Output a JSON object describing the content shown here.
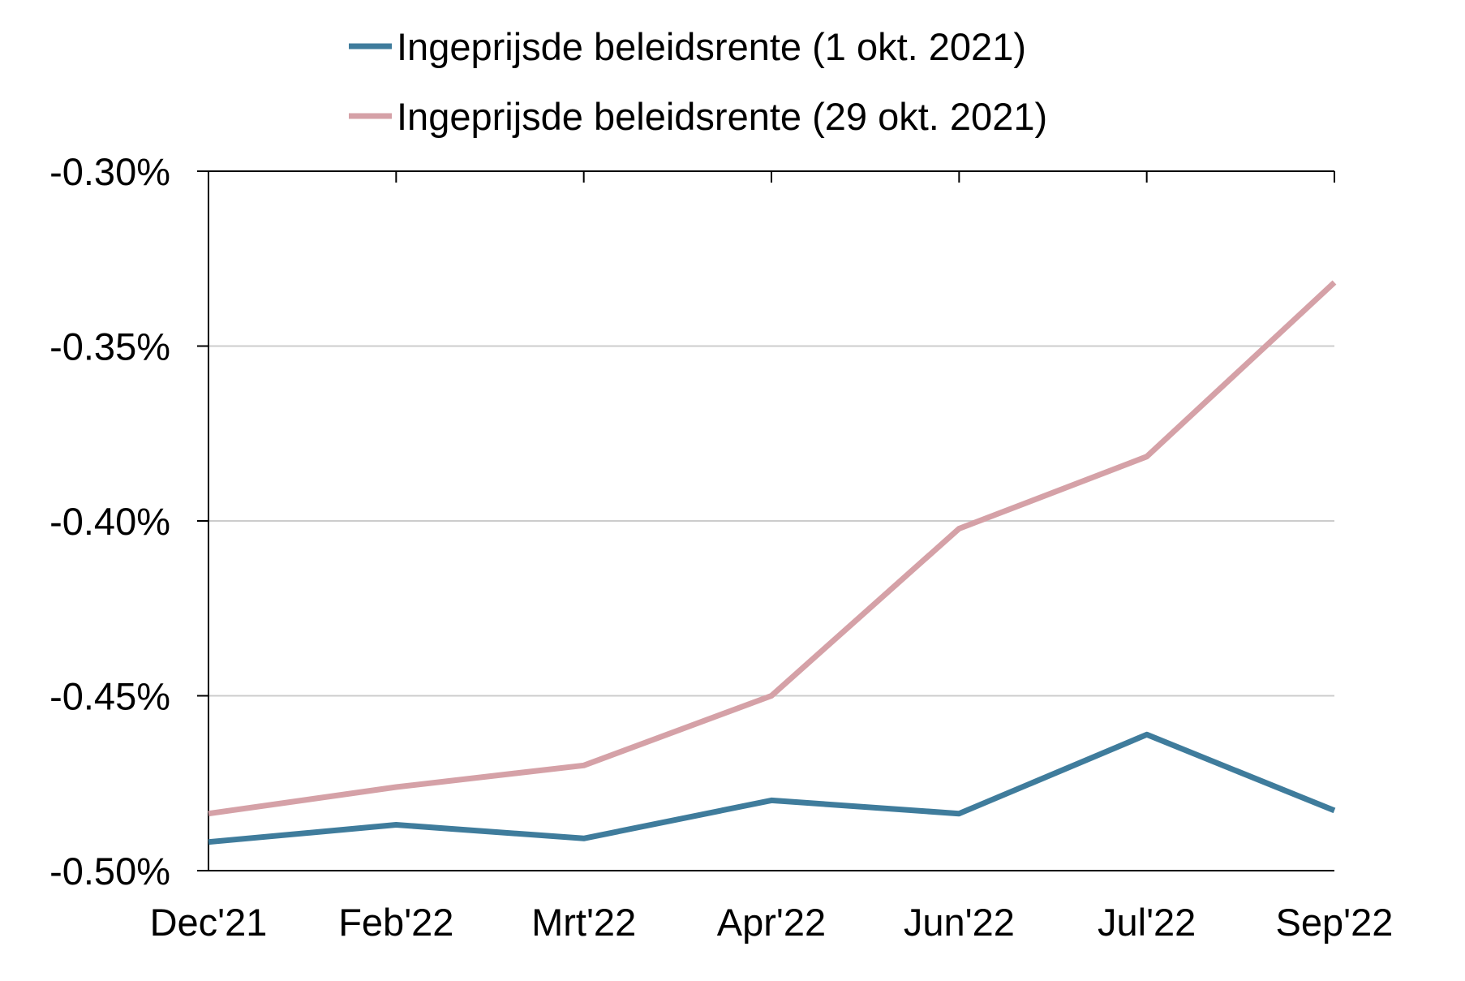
{
  "chart_data": {
    "type": "line",
    "categories": [
      "Dec'21",
      "Feb'22",
      "Mrt'22",
      "Apr'22",
      "Jun'22",
      "Jul'22",
      "Sep'22"
    ],
    "series": [
      {
        "name": "Ingeprijsde beleidsrente (1 okt. 2021)",
        "color": "#3f7c9c",
        "values": [
          -0.4918,
          -0.4869,
          -0.4908,
          -0.4799,
          -0.4837,
          -0.4611,
          -0.4828
        ]
      },
      {
        "name": "Ingeprijsde beleidsrente (29 okt. 2021)",
        "color": "#d5a1a7",
        "values": [
          -0.4837,
          -0.4761,
          -0.4699,
          -0.45,
          -0.4022,
          -0.3816,
          -0.3318
        ]
      }
    ],
    "ylim": [
      -0.5,
      -0.3
    ],
    "yticks": [
      -0.5,
      -0.45,
      -0.4,
      -0.35,
      -0.3
    ],
    "ytick_labels": [
      "-0.50%",
      "-0.45%",
      "-0.40%",
      "-0.35%",
      "-0.30%"
    ],
    "grid": true,
    "legend_position": "top",
    "title": "",
    "xlabel": "",
    "ylabel": ""
  }
}
